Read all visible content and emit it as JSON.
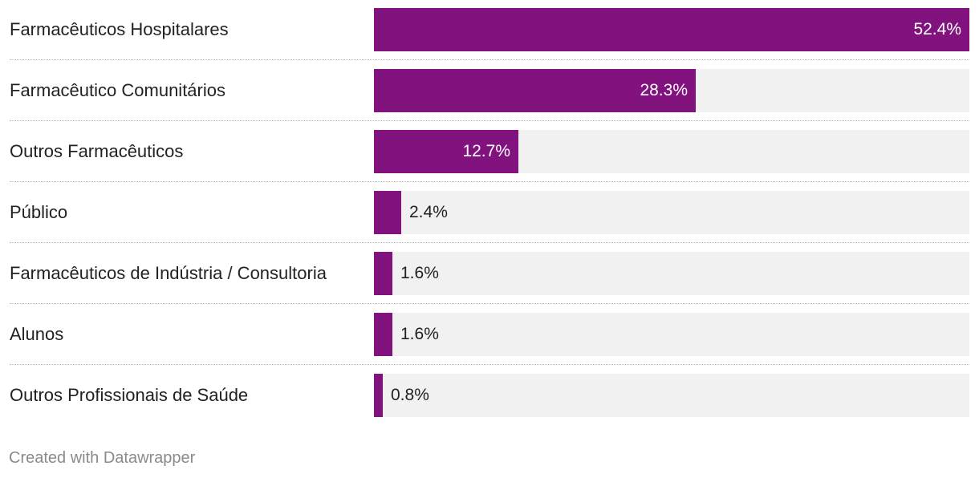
{
  "colors": {
    "bar": "#82137e",
    "track": "#f1f1f1",
    "label_inside": "#ffffff",
    "label_outside": "#222222"
  },
  "chart_data": {
    "type": "bar",
    "orientation": "horizontal",
    "categories": [
      "Farmacêuticos Hospitalares",
      "Farmacêutico Comunitários",
      "Outros Farmacêuticos",
      "Público",
      "Farmacêuticos de Indústria / Consultoria",
      "Alunos",
      "Outros Profissionais de Saúde"
    ],
    "values": [
      52.4,
      28.3,
      12.7,
      2.4,
      1.6,
      1.6,
      0.8
    ],
    "value_labels": [
      "52.4%",
      "28.3%",
      "12.7%",
      "2.4%",
      "1.6%",
      "1.6%",
      "0.8%"
    ],
    "xlim": [
      0,
      52.4
    ],
    "unit": "%",
    "title": "",
    "xlabel": "",
    "ylabel": ""
  },
  "footer": {
    "credit": "Created with Datawrapper"
  }
}
